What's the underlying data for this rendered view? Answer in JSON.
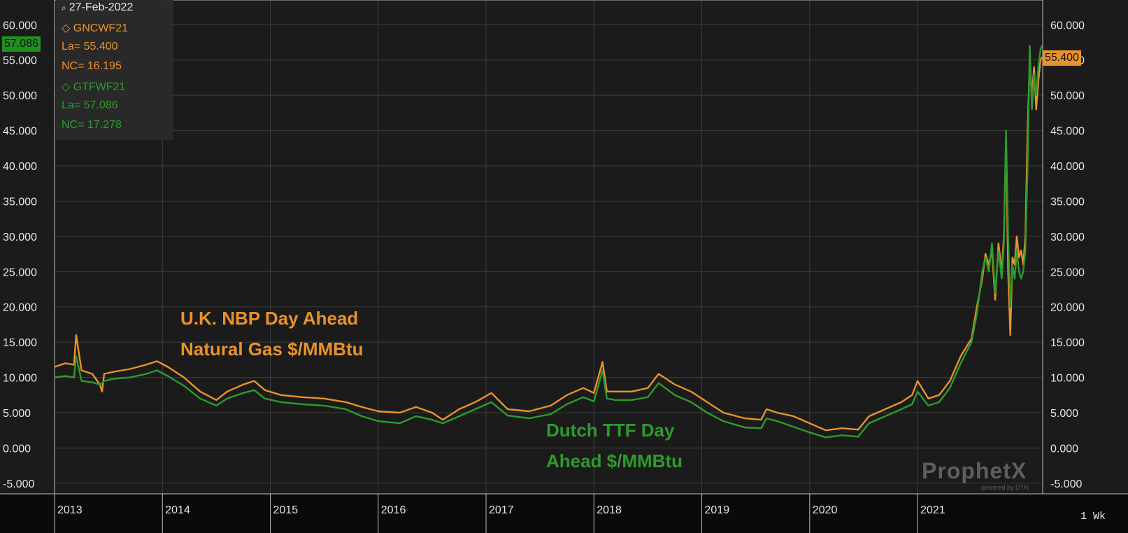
{
  "header": {
    "date": "27-Feb-2022",
    "date_icon": "magnifier-icon"
  },
  "legend": {
    "series1": {
      "symbol": "◇",
      "name": "GNCWF21",
      "last": "La= 55.400",
      "net_change": "NC= 16.195",
      "color": "#e8922c"
    },
    "series2": {
      "symbol": "◇",
      "name": "GTFWF21",
      "last": "La= 57.086",
      "net_change": "NC= 17.278",
      "color": "#2e9a2e"
    }
  },
  "badges": {
    "left_last": "57.086",
    "right_last": "55.400"
  },
  "annotations": {
    "nbp_line1": "U.K. NBP Day Ahead",
    "nbp_line2": "Natural Gas $/MMBtu",
    "ttf_line1": "Dutch TTF Day",
    "ttf_line2": "Ahead $/MMBtu"
  },
  "logo": {
    "text": "ProphetX",
    "sub": "powered by DTN"
  },
  "period": "1 Wk",
  "chart_data": {
    "type": "line",
    "y_ticks": [
      "60.000",
      "55.000",
      "50.000",
      "45.000",
      "40.000",
      "35.000",
      "30.000",
      "25.000",
      "20.000",
      "15.000",
      "10.000",
      "5.000",
      "0.000",
      "-5.000"
    ],
    "y_tick_values": [
      60,
      55,
      50,
      45,
      40,
      35,
      30,
      25,
      20,
      15,
      10,
      5,
      0,
      -5
    ],
    "ylim": [
      -6.5,
      63.5
    ],
    "x_ticks": [
      "2013",
      "2014",
      "2015",
      "2016",
      "2017",
      "2018",
      "2019",
      "2020",
      "2021"
    ],
    "xlim": [
      2013.0,
      2022.16
    ],
    "grid": true,
    "series": [
      {
        "name": "GNCWF21",
        "color": "#e8922c",
        "x": [
          2013.0,
          2013.1,
          2013.18,
          2013.2,
          2013.25,
          2013.35,
          2013.42,
          2013.44,
          2013.46,
          2013.55,
          2013.7,
          2013.85,
          2013.95,
          2014.05,
          2014.2,
          2014.35,
          2014.5,
          2014.6,
          2014.75,
          2014.85,
          2014.95,
          2015.1,
          2015.3,
          2015.5,
          2015.7,
          2015.85,
          2016.0,
          2016.2,
          2016.35,
          2016.5,
          2016.6,
          2016.75,
          2016.9,
          2017.05,
          2017.2,
          2017.4,
          2017.6,
          2017.75,
          2017.9,
          2018.0,
          2018.08,
          2018.12,
          2018.2,
          2018.35,
          2018.5,
          2018.6,
          2018.75,
          2018.9,
          2019.05,
          2019.2,
          2019.4,
          2019.55,
          2019.6,
          2019.7,
          2019.85,
          2020.0,
          2020.15,
          2020.3,
          2020.45,
          2020.55,
          2020.7,
          2020.85,
          2020.95,
          2021.0,
          2021.1,
          2021.2,
          2021.3,
          2021.4,
          2021.5,
          2021.55,
          2021.6,
          2021.63,
          2021.66,
          2021.69,
          2021.72,
          2021.75,
          2021.78,
          2021.8,
          2021.82,
          2021.84,
          2021.86,
          2021.88,
          2021.9,
          2021.92,
          2021.94,
          2021.96,
          2021.98,
          2022.0,
          2022.02,
          2022.04,
          2022.06,
          2022.08,
          2022.1,
          2022.12,
          2022.14,
          2022.155
        ],
        "y": [
          11.5,
          12.0,
          11.8,
          16.0,
          11.0,
          10.5,
          9.0,
          8.0,
          10.5,
          10.8,
          11.2,
          11.8,
          12.3,
          11.5,
          10.0,
          8.0,
          6.8,
          8.0,
          9.0,
          9.5,
          8.2,
          7.5,
          7.2,
          7.0,
          6.5,
          5.8,
          5.2,
          5.0,
          5.8,
          5.0,
          4.0,
          5.5,
          6.5,
          7.8,
          5.5,
          5.2,
          6.0,
          7.5,
          8.5,
          7.8,
          12.2,
          8.0,
          8.0,
          8.0,
          8.5,
          10.5,
          9.0,
          8.0,
          6.5,
          5.0,
          4.2,
          4.0,
          5.5,
          5.0,
          4.5,
          3.5,
          2.5,
          2.8,
          2.6,
          4.5,
          5.5,
          6.5,
          7.5,
          9.5,
          7.0,
          7.5,
          9.5,
          13.0,
          15.5,
          20.0,
          24.0,
          27.5,
          26.0,
          28.0,
          21.0,
          29.0,
          25.0,
          30.0,
          44.0,
          25.0,
          16.0,
          27.0,
          26.0,
          30.0,
          27.0,
          28.0,
          26.0,
          30.0,
          45.0,
          55.0,
          50.0,
          54.0,
          48.0,
          52.0,
          55.0,
          55.4
        ],
        "last": 55.4
      },
      {
        "name": "GTFWF21",
        "color": "#2e9a2e",
        "x": [
          2013.0,
          2013.1,
          2013.18,
          2013.2,
          2013.25,
          2013.35,
          2013.42,
          2013.44,
          2013.46,
          2013.55,
          2013.7,
          2013.85,
          2013.95,
          2014.05,
          2014.2,
          2014.35,
          2014.5,
          2014.6,
          2014.75,
          2014.85,
          2014.95,
          2015.1,
          2015.3,
          2015.5,
          2015.7,
          2015.85,
          2016.0,
          2016.2,
          2016.35,
          2016.5,
          2016.6,
          2016.75,
          2016.9,
          2017.05,
          2017.2,
          2017.4,
          2017.6,
          2017.75,
          2017.9,
          2018.0,
          2018.08,
          2018.12,
          2018.2,
          2018.35,
          2018.5,
          2018.6,
          2018.75,
          2018.9,
          2019.05,
          2019.2,
          2019.4,
          2019.55,
          2019.6,
          2019.7,
          2019.85,
          2020.0,
          2020.15,
          2020.3,
          2020.45,
          2020.55,
          2020.7,
          2020.85,
          2020.95,
          2021.0,
          2021.1,
          2021.2,
          2021.3,
          2021.4,
          2021.5,
          2021.55,
          2021.6,
          2021.63,
          2021.66,
          2021.69,
          2021.72,
          2021.75,
          2021.78,
          2021.8,
          2021.82,
          2021.84,
          2021.86,
          2021.88,
          2021.9,
          2021.92,
          2021.94,
          2021.96,
          2021.98,
          2022.0,
          2022.02,
          2022.04,
          2022.06,
          2022.08,
          2022.1,
          2022.12,
          2022.14,
          2022.155
        ],
        "y": [
          10.0,
          10.2,
          10.0,
          13.0,
          9.5,
          9.3,
          9.0,
          9.2,
          9.5,
          9.8,
          10.0,
          10.5,
          11.0,
          10.2,
          8.8,
          7.0,
          6.0,
          7.0,
          7.8,
          8.2,
          7.0,
          6.5,
          6.2,
          6.0,
          5.5,
          4.5,
          3.8,
          3.5,
          4.5,
          4.0,
          3.5,
          4.5,
          5.5,
          6.5,
          4.6,
          4.2,
          4.8,
          6.2,
          7.2,
          6.6,
          11.0,
          7.0,
          6.8,
          6.8,
          7.2,
          9.2,
          7.5,
          6.5,
          5.0,
          3.8,
          2.9,
          2.8,
          4.2,
          3.8,
          3.0,
          2.2,
          1.5,
          1.8,
          1.6,
          3.5,
          4.5,
          5.5,
          6.2,
          8.0,
          6.0,
          6.5,
          8.5,
          12.0,
          15.0,
          19.0,
          25.0,
          27.0,
          25.0,
          29.0,
          22.0,
          28.0,
          24.0,
          29.0,
          45.0,
          30.0,
          20.0,
          26.0,
          24.0,
          28.0,
          25.0,
          24.0,
          25.0,
          28.0,
          40.0,
          57.0,
          48.0,
          53.0,
          50.0,
          54.0,
          56.5,
          57.086
        ],
        "last": 57.086
      }
    ]
  }
}
